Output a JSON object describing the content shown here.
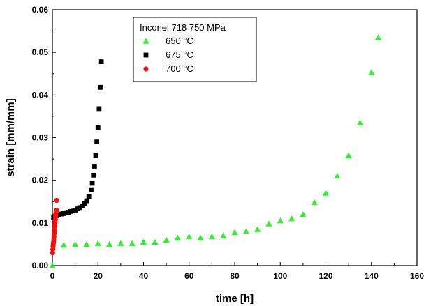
{
  "chart_data": {
    "type": "scatter",
    "xlabel": "time [h]",
    "ylabel": "strain [mm/mm]",
    "xlim": [
      0,
      160
    ],
    "ylim": [
      0,
      0.06
    ],
    "xticks": [
      0,
      20,
      40,
      60,
      80,
      100,
      120,
      140,
      160
    ],
    "xtick_labels": [
      "0",
      "20",
      "40",
      "60",
      "80",
      "100",
      "120",
      "140",
      "160"
    ],
    "yticks": [
      0,
      0.01,
      0.02,
      0.03,
      0.04,
      0.05,
      0.06
    ],
    "ytick_labels": [
      "0.00",
      "0.01",
      "0.02",
      "0.03",
      "0.04",
      "0.05",
      "0.06"
    ],
    "grid": false,
    "legend": {
      "title": "Inconel 718 750 MPa",
      "placement": "top-center"
    },
    "series": [
      {
        "name": "650 °C",
        "marker": "triangle",
        "color": "#33ee33",
        "points": [
          [
            0,
            0
          ],
          [
            5,
            0.0048
          ],
          [
            10,
            0.005
          ],
          [
            15,
            0.005
          ],
          [
            20,
            0.0052
          ],
          [
            25,
            0.005
          ],
          [
            30,
            0.0052
          ],
          [
            35,
            0.0052
          ],
          [
            40,
            0.0055
          ],
          [
            45,
            0.0055
          ],
          [
            50,
            0.006
          ],
          [
            55,
            0.0065
          ],
          [
            60,
            0.0068
          ],
          [
            65,
            0.0065
          ],
          [
            70,
            0.0068
          ],
          [
            75,
            0.007
          ],
          [
            80,
            0.0078
          ],
          [
            85,
            0.008
          ],
          [
            90,
            0.0085
          ],
          [
            95,
            0.0098
          ],
          [
            100,
            0.0105
          ],
          [
            105,
            0.011
          ],
          [
            110,
            0.012
          ],
          [
            115,
            0.0148
          ],
          [
            120,
            0.017
          ],
          [
            125,
            0.021
          ],
          [
            130,
            0.0258
          ],
          [
            135,
            0.0335
          ],
          [
            140,
            0.0453
          ],
          [
            143,
            0.0535
          ]
        ]
      },
      {
        "name": "675 °C",
        "marker": "square",
        "color": "#000000",
        "points": [
          [
            0.5,
            0.0112
          ],
          [
            1,
            0.0115
          ],
          [
            2,
            0.0117
          ],
          [
            3,
            0.0119
          ],
          [
            4,
            0.0121
          ],
          [
            5,
            0.0122
          ],
          [
            6,
            0.0124
          ],
          [
            7,
            0.0125
          ],
          [
            8,
            0.0127
          ],
          [
            9,
            0.0128
          ],
          [
            10,
            0.013
          ],
          [
            11,
            0.0133
          ],
          [
            12,
            0.0136
          ],
          [
            13,
            0.014
          ],
          [
            14,
            0.0145
          ],
          [
            15,
            0.0152
          ],
          [
            16,
            0.0162
          ],
          [
            17,
            0.0178
          ],
          [
            17.5,
            0.0193
          ],
          [
            18,
            0.0212
          ],
          [
            18.5,
            0.0233
          ],
          [
            19,
            0.0258
          ],
          [
            19.5,
            0.029
          ],
          [
            20,
            0.0323
          ],
          [
            20.5,
            0.0368
          ],
          [
            21,
            0.0418
          ],
          [
            21.5,
            0.0478
          ]
        ]
      },
      {
        "name": "700 °C",
        "marker": "circle",
        "color": "#ee1111",
        "points": [
          [
            0.1,
            0.003
          ],
          [
            0.2,
            0.0038
          ],
          [
            0.3,
            0.0045
          ],
          [
            0.4,
            0.005
          ],
          [
            0.5,
            0.0055
          ],
          [
            0.6,
            0.006
          ],
          [
            0.7,
            0.0068
          ],
          [
            0.8,
            0.0075
          ],
          [
            0.9,
            0.008
          ],
          [
            1.0,
            0.0088
          ],
          [
            1.1,
            0.0095
          ],
          [
            1.2,
            0.0102
          ],
          [
            1.3,
            0.0108
          ],
          [
            1.4,
            0.0115
          ],
          [
            1.5,
            0.012
          ],
          [
            1.6,
            0.0125
          ],
          [
            1.8,
            0.013
          ],
          [
            1.9,
            0.0153
          ]
        ]
      }
    ]
  }
}
